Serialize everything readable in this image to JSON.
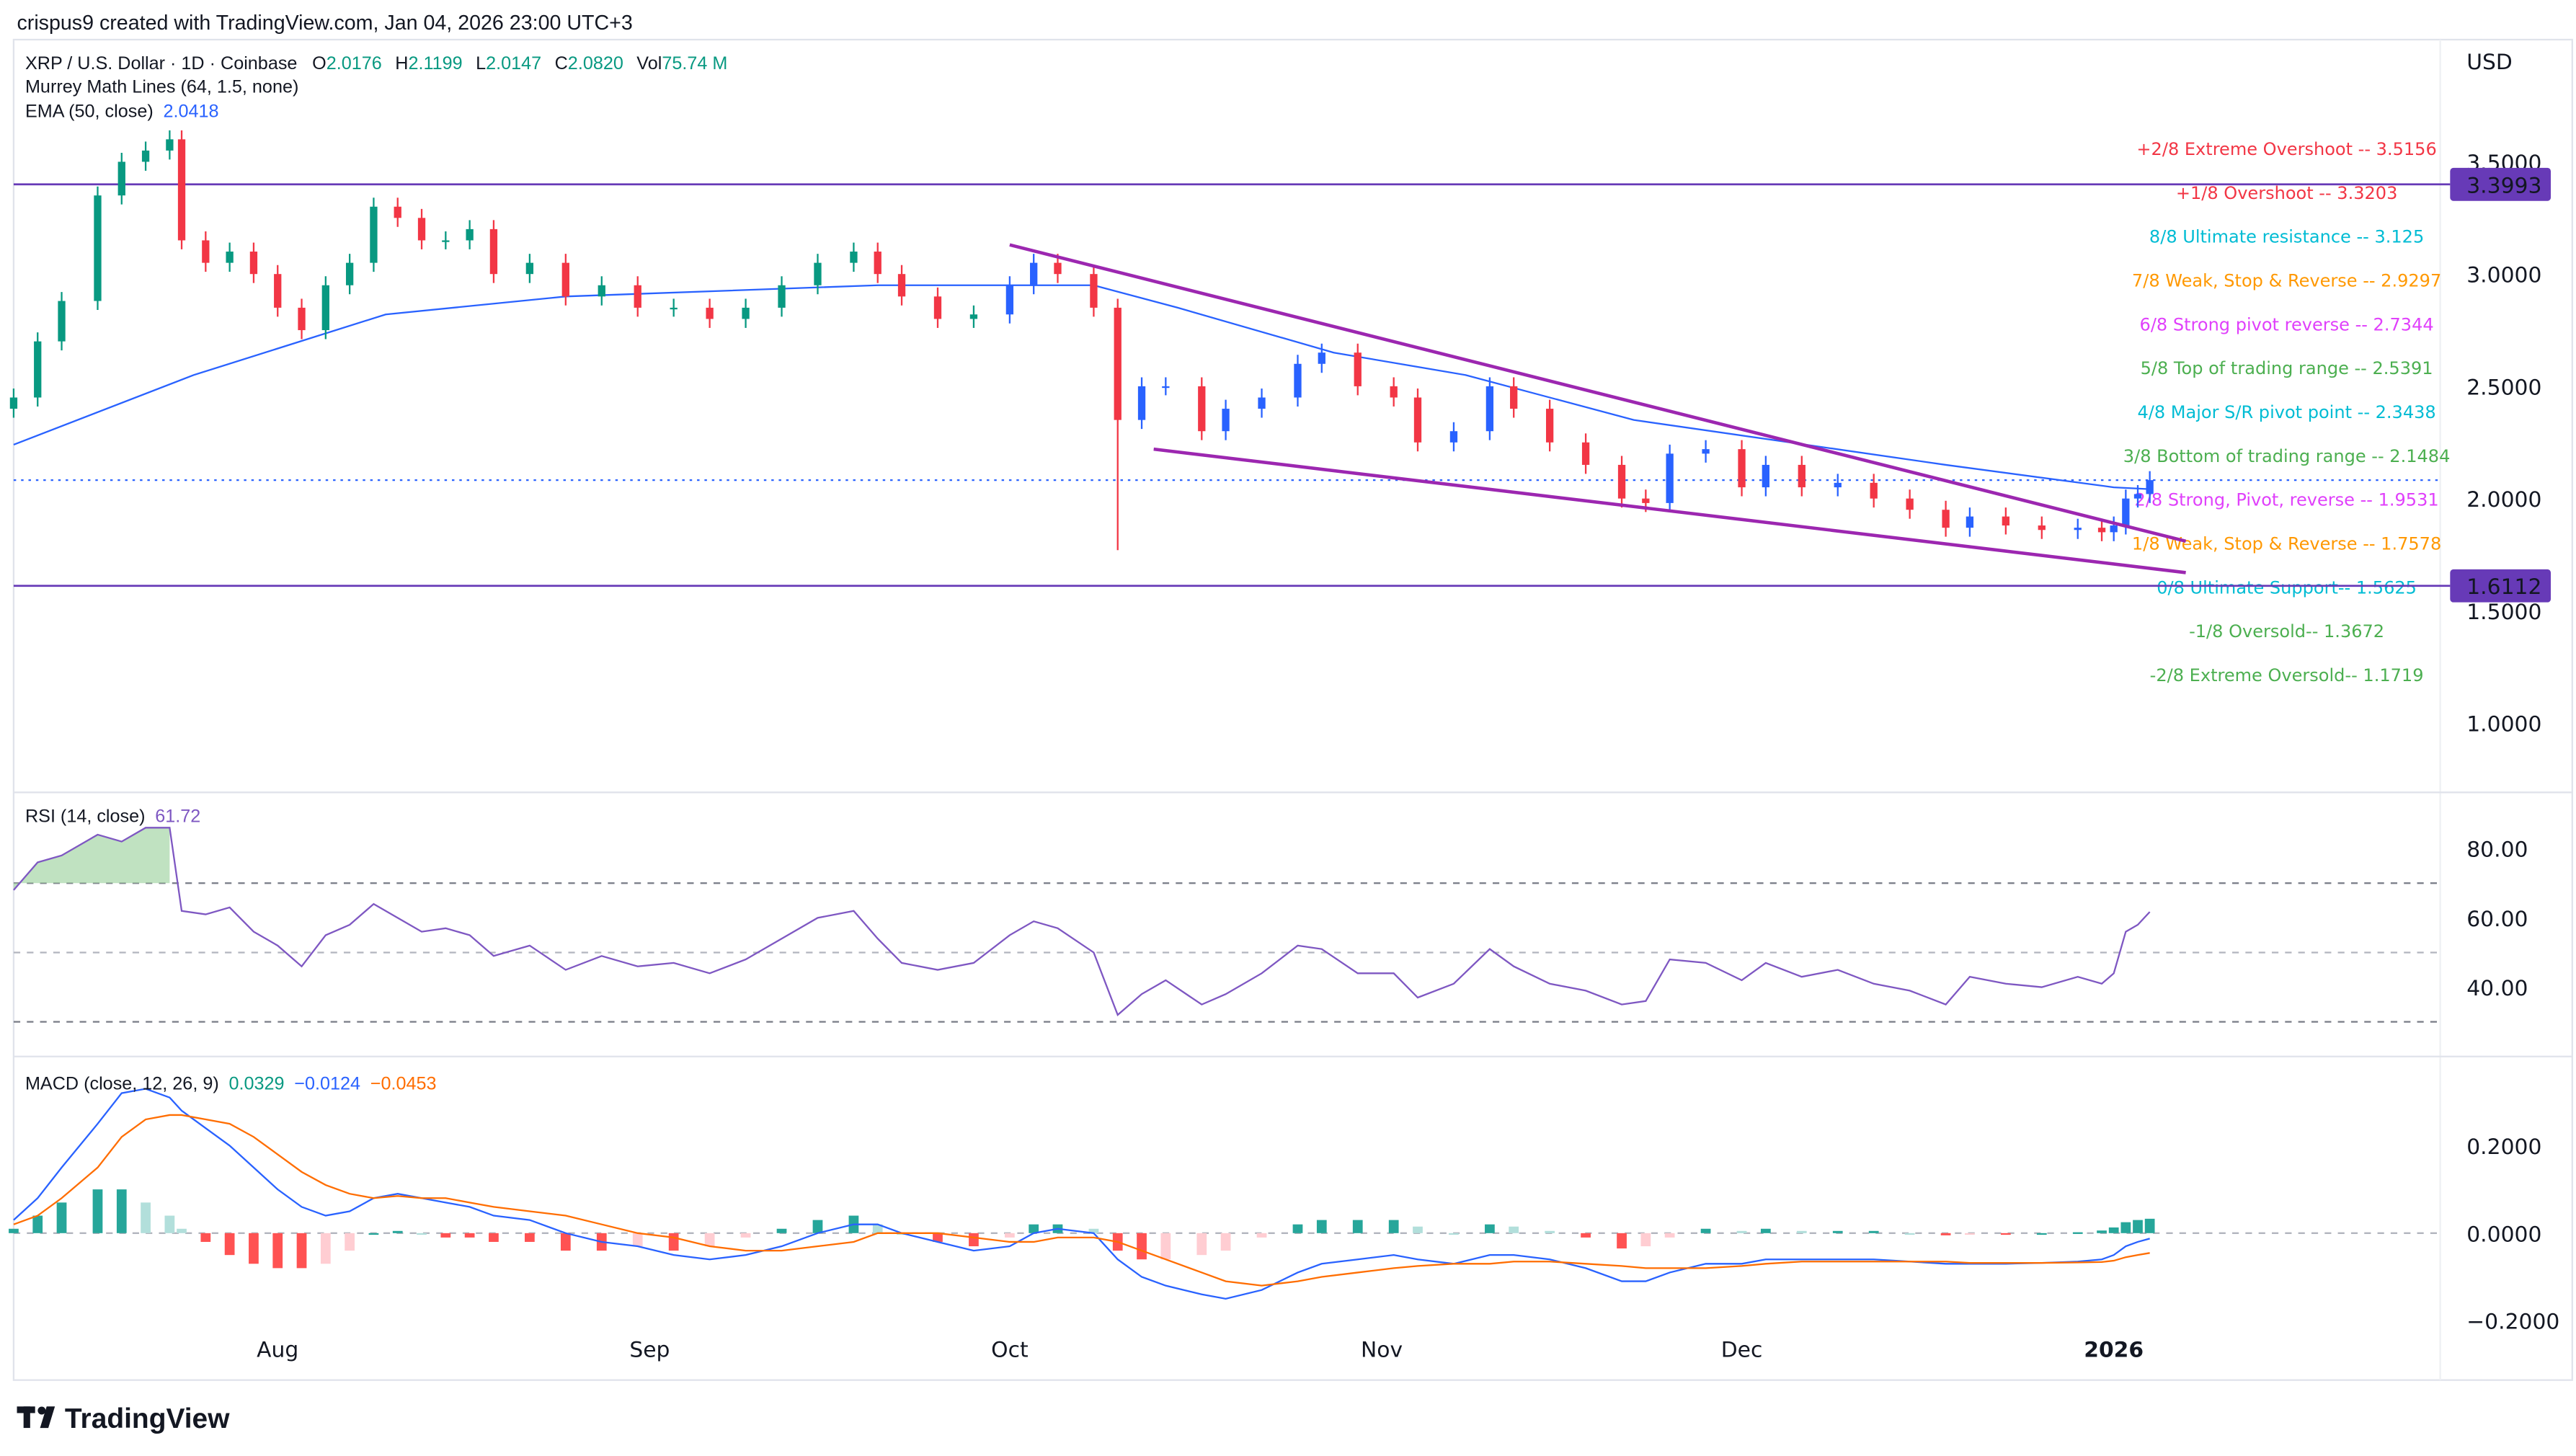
{
  "attribution": "crispus9 created with TradingView.com, Jan 04, 2026 23:00 UTC+3",
  "currency": "USD",
  "logo_text": "TradingView",
  "legend": {
    "symbol": "XRP / U.S. Dollar · 1D · Coinbase",
    "o_label": "O",
    "o": "2.0176",
    "h_label": "H",
    "h": "2.1199",
    "l_label": "L",
    "l": "2.0147",
    "c_label": "C",
    "c": "2.0820",
    "vol_label": "Vol",
    "vol": "75.74 M",
    "murrey": "Murrey Math Lines (64, 1.5, none)",
    "ema": "EMA (50, close)",
    "ema_value": "2.0418",
    "rsi": "RSI (14, close)",
    "rsi_value": "61.72",
    "macd": "MACD (close, 12, 26, 9)",
    "macd_hist": "0.0329",
    "macd_line": "−0.0124",
    "macd_signal": "−0.0453"
  },
  "colors": {
    "up": "#089981",
    "up_recent": "#2962ff",
    "down": "#f23645",
    "ema": "#2962ff",
    "rsi": "#7e57c2",
    "macd": "#2962ff",
    "signal": "#ff6d00",
    "trendline": "#9c27b0",
    "hline": "#673ab7"
  },
  "chart_data": [
    {
      "type": "candlestick",
      "title": "XRP / U.S. Dollar · 1D · Coinbase",
      "ylim": [
        0.7,
        3.75
      ],
      "yticks": [
        "3.5000",
        "3.0000",
        "2.5000",
        "2.0000",
        "1.5000",
        "1.0000"
      ],
      "xticks": [
        {
          "label": "Aug",
          "date": "2025-08-01"
        },
        {
          "label": "Sep",
          "date": "2025-09-01"
        },
        {
          "label": "Oct",
          "date": "2025-10-01"
        },
        {
          "label": "Nov",
          "date": "2025-11-01"
        },
        {
          "label": "Dec",
          "date": "2025-12-01"
        },
        {
          "label": "2026",
          "date": "2026-01-01"
        }
      ],
      "dates": [
        "2025-07-10",
        "2025-07-12",
        "2025-07-14",
        "2025-07-17",
        "2025-07-19",
        "2025-07-21",
        "2025-07-23",
        "2025-07-24",
        "2025-07-26",
        "2025-07-28",
        "2025-07-30",
        "2025-08-01",
        "2025-08-03",
        "2025-08-05",
        "2025-08-07",
        "2025-08-09",
        "2025-08-11",
        "2025-08-13",
        "2025-08-15",
        "2025-08-17",
        "2025-08-19",
        "2025-08-22",
        "2025-08-25",
        "2025-08-28",
        "2025-08-31",
        "2025-09-03",
        "2025-09-06",
        "2025-09-09",
        "2025-09-12",
        "2025-09-15",
        "2025-09-18",
        "2025-09-20",
        "2025-09-22",
        "2025-09-25",
        "2025-09-28",
        "2025-10-01",
        "2025-10-03",
        "2025-10-05",
        "2025-10-08",
        "2025-10-10",
        "2025-10-12",
        "2025-10-14",
        "2025-10-17",
        "2025-10-19",
        "2025-10-22",
        "2025-10-25",
        "2025-10-27",
        "2025-10-30",
        "2025-11-02",
        "2025-11-04",
        "2025-11-07",
        "2025-11-10",
        "2025-11-12",
        "2025-11-15",
        "2025-11-18",
        "2025-11-21",
        "2025-11-23",
        "2025-11-25",
        "2025-11-28",
        "2025-12-01",
        "2025-12-03",
        "2025-12-06",
        "2025-12-09",
        "2025-12-12",
        "2025-12-15",
        "2025-12-18",
        "2025-12-20",
        "2025-12-23",
        "2025-12-26",
        "2025-12-29",
        "2025-12-31",
        "2026-01-01",
        "2026-01-02",
        "2026-01-03",
        "2026-01-04"
      ],
      "close": [
        2.45,
        2.7,
        2.88,
        3.35,
        3.5,
        3.55,
        3.6,
        3.15,
        3.05,
        3.1,
        3.0,
        2.85,
        2.75,
        2.95,
        3.05,
        3.3,
        3.25,
        3.15,
        3.15,
        3.2,
        3.0,
        3.05,
        2.9,
        2.95,
        2.85,
        2.85,
        2.8,
        2.85,
        2.95,
        3.05,
        3.1,
        3.0,
        2.9,
        2.8,
        2.82,
        2.95,
        3.05,
        3.0,
        2.85,
        2.35,
        2.5,
        2.5,
        2.3,
        2.4,
        2.45,
        2.6,
        2.65,
        2.5,
        2.45,
        2.25,
        2.3,
        2.5,
        2.4,
        2.25,
        2.15,
        2.0,
        1.98,
        2.2,
        2.22,
        2.05,
        2.15,
        2.05,
        2.07,
        2.0,
        1.95,
        1.87,
        1.92,
        1.88,
        1.86,
        1.87,
        1.85,
        1.88,
        2.0,
        2.02,
        2.082
      ],
      "notable_low": {
        "date": "2025-10-10",
        "value": 1.77
      },
      "ema50": {
        "name": "EMA (50, close)",
        "dates": [
          "2025-07-10",
          "2025-07-25",
          "2025-08-10",
          "2025-08-25",
          "2025-09-20",
          "2025-10-08",
          "2025-10-15",
          "2025-10-28",
          "2025-11-08",
          "2025-11-22",
          "2025-12-05",
          "2025-12-18",
          "2026-01-01",
          "2026-01-04"
        ],
        "values": [
          2.24,
          2.55,
          2.82,
          2.9,
          2.95,
          2.95,
          2.85,
          2.65,
          2.55,
          2.35,
          2.25,
          2.15,
          2.05,
          2.0418
        ]
      },
      "trendlines": [
        {
          "from": {
            "date": "2025-10-01",
            "value": 3.13
          },
          "to": {
            "date": "2026-01-07",
            "value": 1.81
          }
        },
        {
          "from": {
            "date": "2025-10-13",
            "value": 2.22
          },
          "to": {
            "date": "2026-01-07",
            "value": 1.67
          }
        }
      ],
      "horizontal_lines": [
        {
          "value": 3.3993,
          "label": "3.3993"
        },
        {
          "value": 1.6112,
          "label": "1.6112"
        }
      ],
      "last_price": 2.082,
      "murrey_levels": [
        {
          "label": "+2/8 Extreme Overshoot --  3.5156",
          "value": 3.5156,
          "color": "#f23645"
        },
        {
          "label": "+1/8 Overshoot --  3.3203",
          "value": 3.3203,
          "color": "#f23645"
        },
        {
          "label": "8/8 Ultimate resistance --  3.125",
          "value": 3.125,
          "color": "#00bcd4"
        },
        {
          "label": "7/8 Weak, Stop & Reverse --  2.9297",
          "value": 2.9297,
          "color": "#ff9800"
        },
        {
          "label": "6/8 Strong pivot reverse --  2.7344",
          "value": 2.7344,
          "color": "#e040fb"
        },
        {
          "label": "5/8 Top of trading range --  2.5391",
          "value": 2.5391,
          "color": "#4caf50"
        },
        {
          "label": "4/8 Major S/R pivot point --  2.3438",
          "value": 2.3438,
          "color": "#00bcd4"
        },
        {
          "label": "3/8 Bottom of trading range --  2.1484",
          "value": 2.1484,
          "color": "#4caf50"
        },
        {
          "label": "2/8 Strong, Pivot, reverse --  1.9531",
          "value": 1.9531,
          "color": "#e040fb"
        },
        {
          "label": "1/8 Weak, Stop & Reverse --  1.7578",
          "value": 1.7578,
          "color": "#ff9800"
        },
        {
          "label": "0/8 Ultimate Support--  1.5625",
          "value": 1.5625,
          "color": "#00bcd4"
        },
        {
          "label": "-1/8 Oversold--  1.3672",
          "value": 1.3672,
          "color": "#4caf50"
        },
        {
          "label": "-2/8 Extreme Oversold--  1.1719",
          "value": 1.1719,
          "color": "#4caf50"
        }
      ]
    },
    {
      "type": "line",
      "title": "RSI (14, close)",
      "yticks": [
        "80.00",
        "60.00",
        "40.00"
      ],
      "bands": [
        70,
        50,
        30
      ],
      "values": [
        68,
        76,
        78,
        84,
        82,
        86,
        86,
        62,
        61,
        63,
        56,
        52,
        46,
        55,
        58,
        64,
        60,
        56,
        57,
        55,
        49,
        52,
        45,
        49,
        46,
        47,
        44,
        48,
        54,
        60,
        62,
        54,
        47,
        45,
        47,
        55,
        59,
        57,
        50,
        32,
        38,
        42,
        35,
        38,
        44,
        52,
        51,
        44,
        44,
        37,
        41,
        51,
        46,
        41,
        39,
        35,
        36,
        48,
        47,
        42,
        47,
        43,
        45,
        41,
        39,
        35,
        43,
        41,
        40,
        43,
        41,
        44,
        56,
        58,
        61.72
      ]
    },
    {
      "type": "line+bar",
      "title": "MACD (close, 12, 26, 9)",
      "yticks": [
        "0.2000",
        "0.0000",
        "−0.2000"
      ],
      "macd": [
        0.03,
        0.08,
        0.15,
        0.25,
        0.32,
        0.33,
        0.31,
        0.28,
        0.24,
        0.2,
        0.15,
        0.1,
        0.06,
        0.04,
        0.05,
        0.08,
        0.09,
        0.08,
        0.07,
        0.06,
        0.04,
        0.03,
        0.0,
        -0.02,
        -0.03,
        -0.05,
        -0.06,
        -0.05,
        -0.03,
        0.0,
        0.02,
        0.02,
        0.0,
        -0.02,
        -0.04,
        -0.03,
        0.0,
        0.01,
        0.0,
        -0.06,
        -0.1,
        -0.12,
        -0.14,
        -0.15,
        -0.13,
        -0.09,
        -0.07,
        -0.06,
        -0.05,
        -0.06,
        -0.07,
        -0.05,
        -0.05,
        -0.06,
        -0.08,
        -0.11,
        -0.11,
        -0.09,
        -0.07,
        -0.07,
        -0.06,
        -0.06,
        -0.06,
        -0.06,
        -0.065,
        -0.07,
        -0.07,
        -0.07,
        -0.068,
        -0.065,
        -0.06,
        -0.05,
        -0.03,
        -0.02,
        -0.0124
      ],
      "signal": [
        0.02,
        0.04,
        0.08,
        0.15,
        0.22,
        0.26,
        0.27,
        0.27,
        0.26,
        0.25,
        0.22,
        0.18,
        0.14,
        0.11,
        0.09,
        0.08,
        0.085,
        0.08,
        0.08,
        0.07,
        0.06,
        0.05,
        0.04,
        0.02,
        0.0,
        -0.01,
        -0.03,
        -0.04,
        -0.04,
        -0.03,
        -0.02,
        0.0,
        0.0,
        0.0,
        -0.01,
        -0.02,
        -0.02,
        -0.01,
        -0.01,
        -0.02,
        -0.04,
        -0.06,
        -0.09,
        -0.11,
        -0.12,
        -0.11,
        -0.1,
        -0.09,
        -0.08,
        -0.075,
        -0.07,
        -0.07,
        -0.065,
        -0.065,
        -0.07,
        -0.075,
        -0.08,
        -0.08,
        -0.08,
        -0.075,
        -0.07,
        -0.065,
        -0.065,
        -0.065,
        -0.065,
        -0.065,
        -0.068,
        -0.068,
        -0.068,
        -0.067,
        -0.066,
        -0.063,
        -0.055,
        -0.05,
        -0.0453
      ]
    }
  ]
}
